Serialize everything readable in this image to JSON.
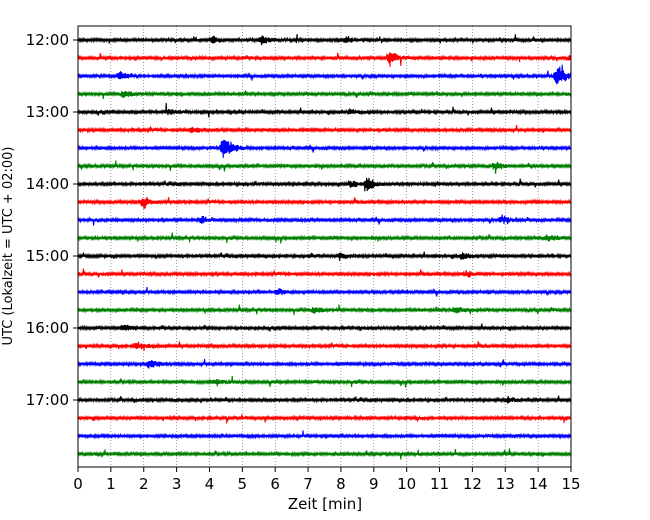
{
  "chart_data": {
    "type": "line",
    "subtype": "helicorder",
    "xlabel": "Zeit  [min]",
    "ylabel": "UTC (Lokalzeit = UTC + 02:00)",
    "xlim": [
      0,
      15
    ],
    "x_ticks": [
      "0",
      "1",
      "2",
      "3",
      "4",
      "5",
      "6",
      "7",
      "8",
      "9",
      "10",
      "11",
      "12",
      "13",
      "14",
      "15"
    ],
    "y_tick_labels": [
      "12:00",
      "13:00",
      "14:00",
      "15:00",
      "16:00",
      "17:00"
    ],
    "grid": "vertical dotted lines at every minute",
    "line_minutes": 15,
    "line_colors": [
      "#000000",
      "#ff0000",
      "#0000ff",
      "#008000"
    ],
    "line_start_times": [
      "12:00",
      "12:15",
      "12:30",
      "12:45",
      "13:00",
      "13:15",
      "13:30",
      "13:45",
      "14:00",
      "14:15",
      "14:30",
      "14:45",
      "15:00",
      "15:15",
      "15:30",
      "15:45",
      "16:00",
      "16:15",
      "16:30",
      "16:45",
      "17:00",
      "17:15",
      "17:30",
      "17:45"
    ],
    "events": [
      {
        "line": 0,
        "minute": 5.6,
        "amplitude": 0.3
      },
      {
        "line": 0,
        "minute": 4.1,
        "amplitude": 0.22
      },
      {
        "line": 0,
        "minute": 8.2,
        "amplitude": 0.2
      },
      {
        "line": 1,
        "minute": 9.5,
        "amplitude": 0.55
      },
      {
        "line": 1,
        "minute": 15.0,
        "amplitude": 0.3
      },
      {
        "line": 2,
        "minute": 14.6,
        "amplitude": 0.8
      },
      {
        "line": 2,
        "minute": 1.3,
        "amplitude": 0.25
      },
      {
        "line": 3,
        "minute": 1.4,
        "amplitude": 0.25
      },
      {
        "line": 4,
        "minute": 2.7,
        "amplitude": 0.2
      },
      {
        "line": 4,
        "minute": 8.3,
        "amplitude": 0.2
      },
      {
        "line": 5,
        "minute": 3.5,
        "amplitude": 0.2
      },
      {
        "line": 6,
        "minute": 4.45,
        "amplitude": 1.0
      },
      {
        "line": 7,
        "minute": 12.7,
        "amplitude": 0.25
      },
      {
        "line": 8,
        "minute": 8.8,
        "amplitude": 0.45
      },
      {
        "line": 8,
        "minute": 8.3,
        "amplitude": 0.22
      },
      {
        "line": 9,
        "minute": 2.0,
        "amplitude": 0.4
      },
      {
        "line": 10,
        "minute": 3.8,
        "amplitude": 0.2
      },
      {
        "line": 10,
        "minute": 12.9,
        "amplitude": 0.25
      },
      {
        "line": 11,
        "minute": 14.3,
        "amplitude": 0.25
      },
      {
        "line": 12,
        "minute": 8.0,
        "amplitude": 0.25
      },
      {
        "line": 12,
        "minute": 11.7,
        "amplitude": 0.22
      },
      {
        "line": 13,
        "minute": 11.8,
        "amplitude": 0.22
      },
      {
        "line": 14,
        "minute": 6.1,
        "amplitude": 0.2
      },
      {
        "line": 15,
        "minute": 7.2,
        "amplitude": 0.22
      },
      {
        "line": 15,
        "minute": 11.5,
        "amplitude": 0.22
      },
      {
        "line": 16,
        "minute": 1.4,
        "amplitude": 0.25
      },
      {
        "line": 17,
        "minute": 1.8,
        "amplitude": 0.3
      },
      {
        "line": 18,
        "minute": 2.2,
        "amplitude": 0.3
      },
      {
        "line": 19,
        "minute": 4.2,
        "amplitude": 0.22
      },
      {
        "line": 20,
        "minute": 13.1,
        "amplitude": 0.2
      }
    ]
  }
}
